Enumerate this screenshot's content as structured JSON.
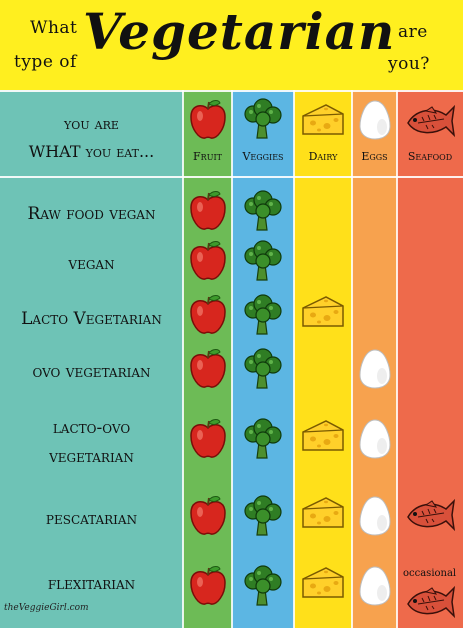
{
  "header": {
    "what": "What",
    "type_of": "type of",
    "vegetarian": "Vegetarian",
    "are": "are",
    "you": "you?"
  },
  "table": {
    "title_line1": "you are",
    "title_line2": "WHAT you eat...",
    "columns": [
      {
        "label": "Fruit",
        "color": "#6dbb56",
        "icon": "apple-icon"
      },
      {
        "label": "Veggies",
        "color": "#5cb6e3",
        "icon": "broccoli-icon"
      },
      {
        "label": "Dairy",
        "color": "#ffe01a",
        "icon": "cheese-icon"
      },
      {
        "label": "Eggs",
        "color": "#f7a24e",
        "icon": "egg-icon"
      },
      {
        "label": "Seafood",
        "color": "#ee6a4b",
        "icon": "fish-icon"
      }
    ],
    "rows": [
      {
        "label": "Raw food vegan",
        "has": [
          true,
          true,
          false,
          false,
          false
        ]
      },
      {
        "label": "vegan",
        "has": [
          true,
          true,
          false,
          false,
          false
        ]
      },
      {
        "label": "Lacto Vegetarian",
        "has": [
          true,
          true,
          true,
          false,
          false
        ]
      },
      {
        "label": "ovo vegetarian",
        "has": [
          true,
          true,
          false,
          true,
          false
        ]
      },
      {
        "label_line1": "lacto-ovo",
        "label_line2": "vegetarian",
        "has": [
          true,
          true,
          true,
          true,
          false
        ]
      },
      {
        "label": "pescatarian",
        "has": [
          true,
          true,
          true,
          true,
          true
        ]
      },
      {
        "label": "flexitarian",
        "has": [
          true,
          true,
          true,
          true,
          true
        ],
        "note": "occasional"
      }
    ]
  },
  "logo": "theVeggieGirl.com"
}
